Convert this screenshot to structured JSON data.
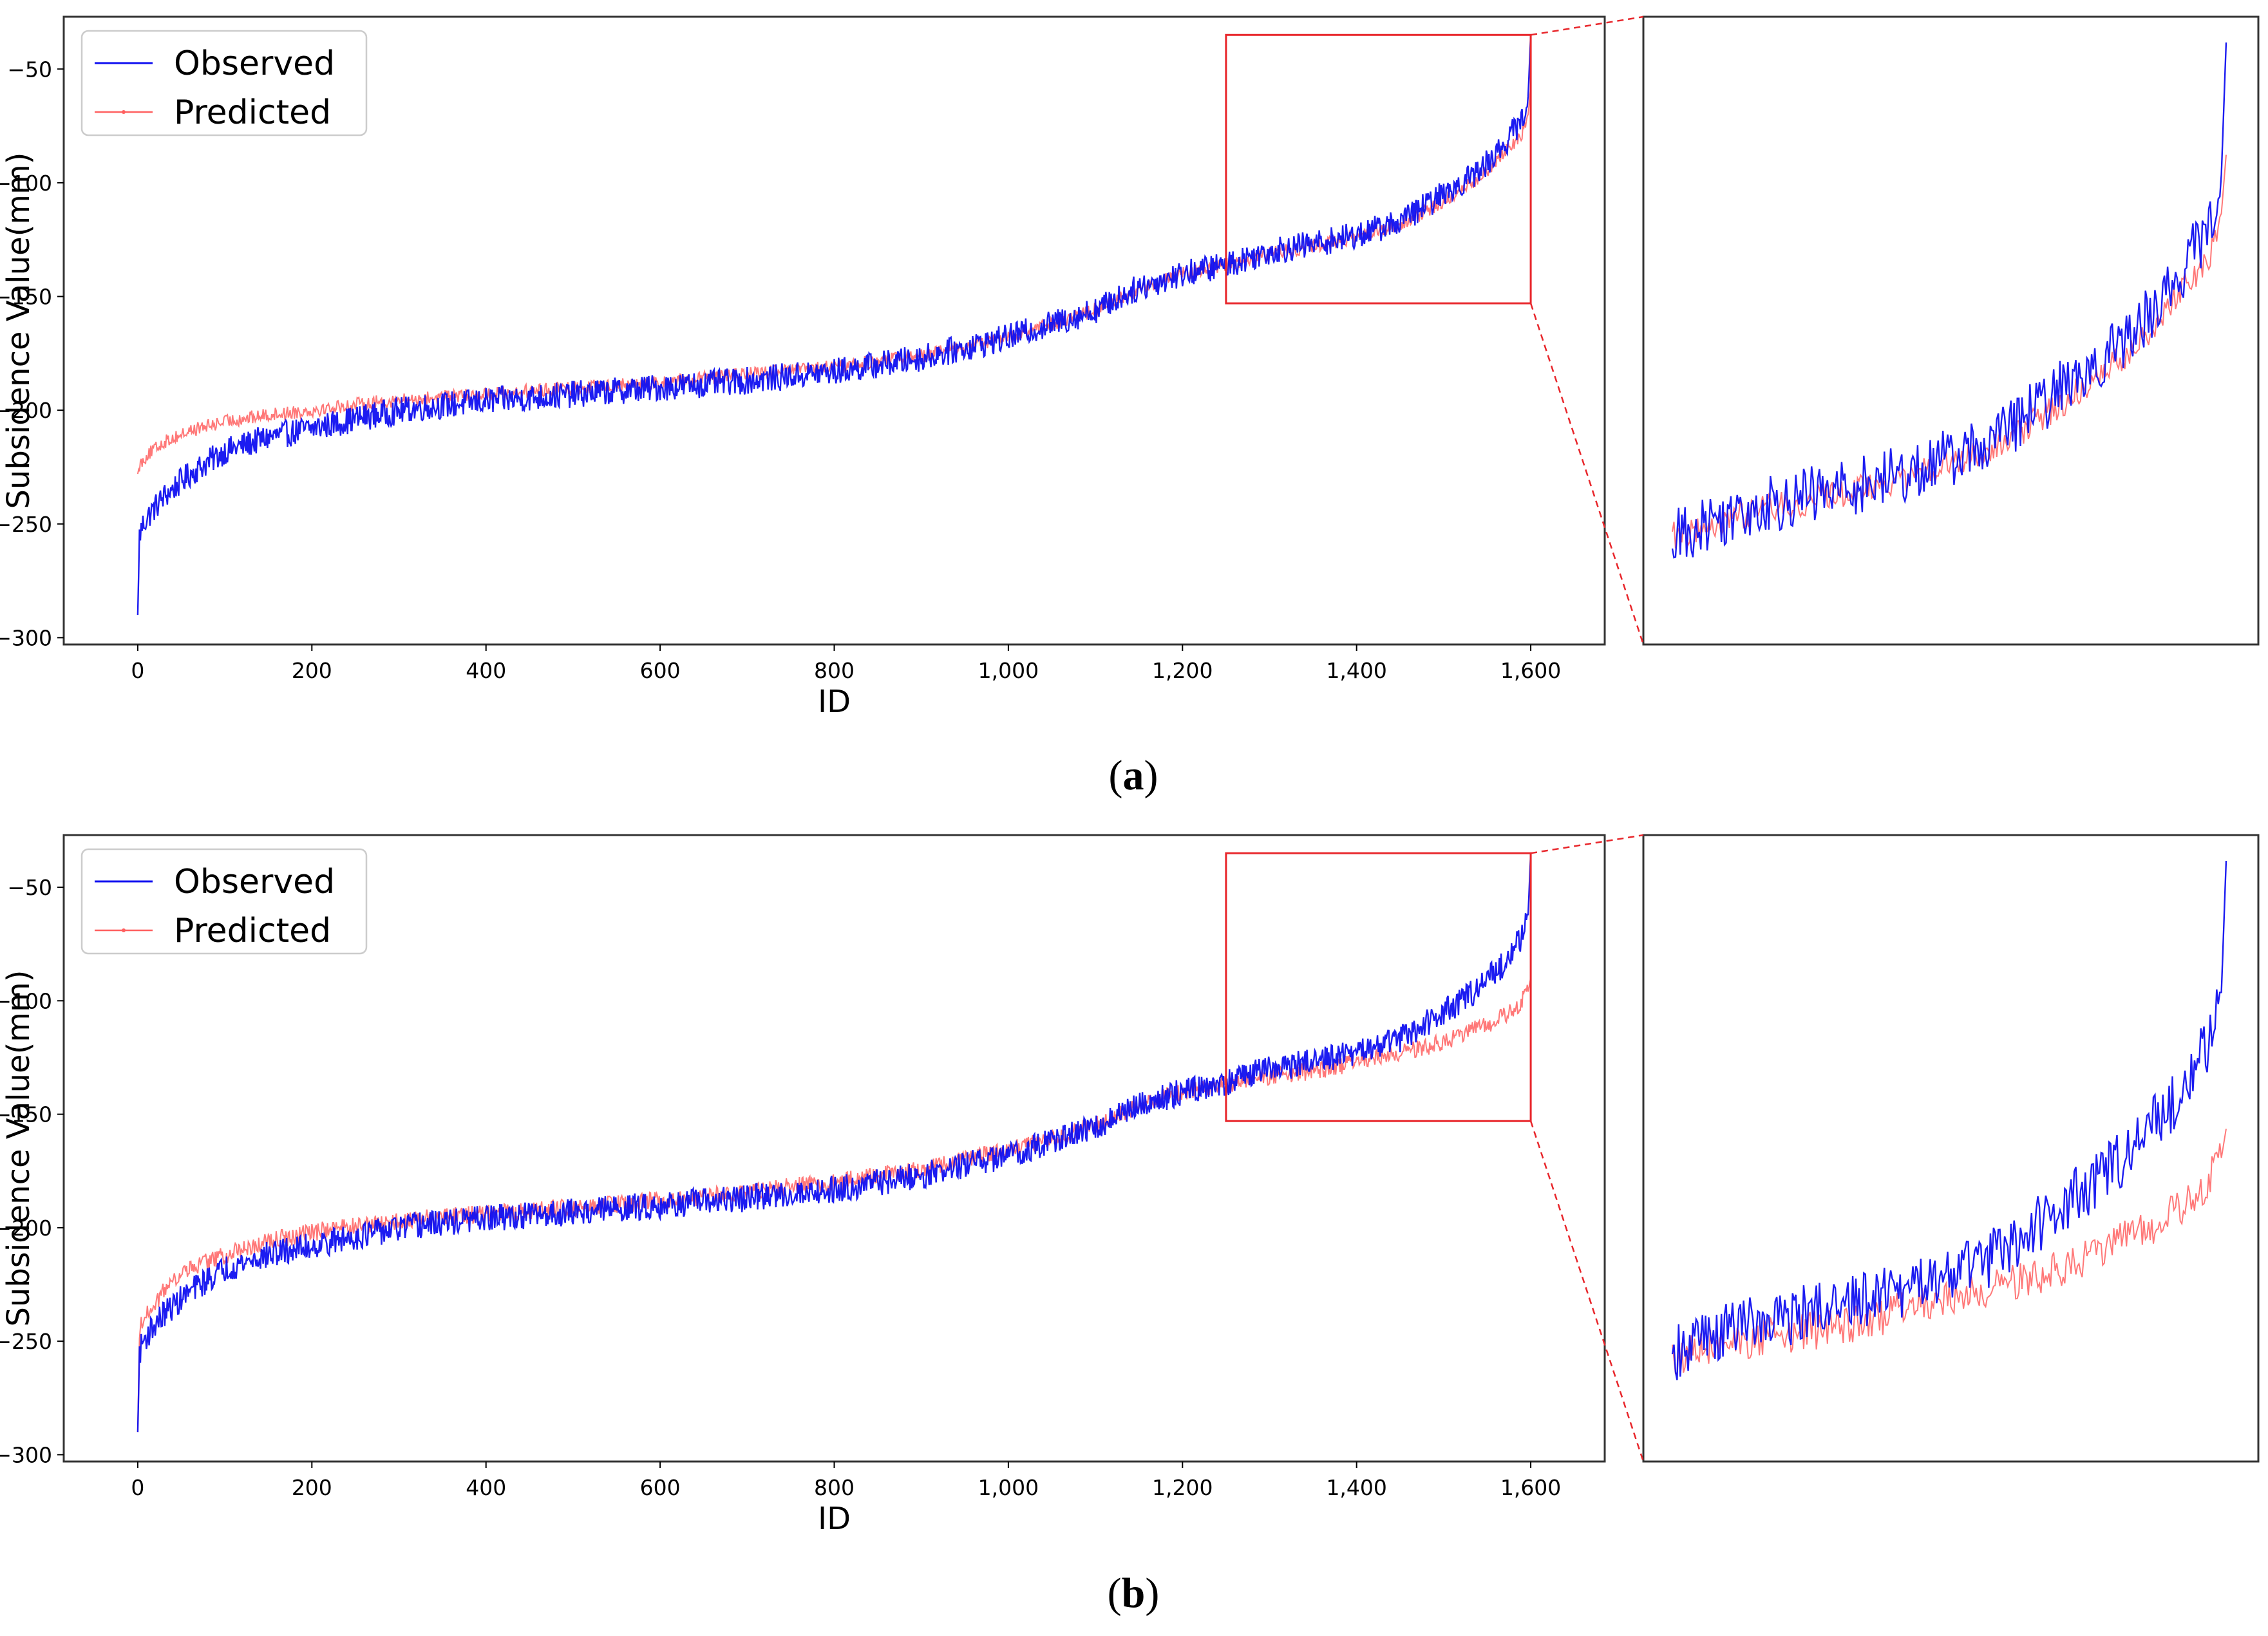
{
  "panels": [
    {
      "caption_letter": "a",
      "chart_data": {
        "type": "line",
        "xlabel": "ID",
        "ylabel": "Subsidence Value(mm)",
        "xlim": [
          -85,
          1685
        ],
        "ylim": [
          -303,
          -27
        ],
        "xticks": [
          0,
          200,
          400,
          600,
          800,
          1000,
          1200,
          1400,
          1600
        ],
        "xtick_labels": [
          "0",
          "200",
          "400",
          "600",
          "800",
          "1,000",
          "1,200",
          "1,400",
          "1,600"
        ],
        "yticks": [
          -300,
          -250,
          -200,
          -150,
          -100,
          -50
        ],
        "ytick_labels": [
          "−300",
          "−250",
          "−200",
          "−150",
          "−100",
          "−50"
        ],
        "legend": {
          "position": "top-left",
          "entries": [
            "Observed",
            "Predicted"
          ]
        },
        "zoom_window": {
          "x_range": [
            1250,
            1600
          ],
          "y_range": [
            -153,
            -35
          ]
        },
        "series": [
          {
            "name": "Observed",
            "color": "#1010f0",
            "anchor_x": [
              0,
              2,
              6,
              15,
              30,
              60,
              100,
              150,
              200,
              260,
              320,
              400,
              500,
              600,
              700,
              800,
              900,
              1000,
              1100,
              1150,
              1200,
              1250,
              1300,
              1350,
              1400,
              1450,
              1500,
              1540,
              1570,
              1590,
              1597,
              1600
            ],
            "anchor_y": [
              -290,
              -255,
              -250,
              -245,
              -238,
              -228,
              -218,
              -212,
              -208,
              -203,
              -199,
              -196,
              -193,
              -190,
              -187,
              -183,
              -177,
              -168,
              -156,
              -146,
              -140,
              -136,
              -130,
              -127,
              -123,
              -117,
              -105,
              -95,
              -83,
              -72,
              -62,
              -35
            ],
            "noise": 6
          },
          {
            "name": "Predicted",
            "color": "#ff6060",
            "anchor_x": [
              0,
              2,
              10,
              30,
              60,
              100,
              150,
              200,
              260,
              320,
              400,
              500,
              600,
              700,
              800,
              900,
              1000,
              1100,
              1150,
              1200,
              1250,
              1300,
              1350,
              1400,
              1450,
              1500,
              1540,
              1570,
              1590,
              1597,
              1600
            ],
            "anchor_y": [
              -228,
              -224,
              -220,
              -214,
              -209,
              -205,
              -202,
              -200,
              -197,
              -195,
              -193,
              -190,
              -188,
              -184,
              -181,
              -176,
              -168,
              -156,
              -147,
              -140,
              -136,
              -131,
              -128,
              -124,
              -119,
              -108,
              -98,
              -87,
              -78,
              -70,
              -58
            ],
            "noise": 3
          }
        ]
      }
    },
    {
      "caption_letter": "b",
      "chart_data": {
        "type": "line",
        "xlabel": "ID",
        "ylabel": "Subsidence Value(mm)",
        "xlim": [
          -85,
          1685
        ],
        "ylim": [
          -303,
          -27
        ],
        "xticks": [
          0,
          200,
          400,
          600,
          800,
          1000,
          1200,
          1400,
          1600
        ],
        "xtick_labels": [
          "0",
          "200",
          "400",
          "600",
          "800",
          "1,000",
          "1,200",
          "1,400",
          "1,600"
        ],
        "yticks": [
          -300,
          -250,
          -200,
          -150,
          -100,
          -50
        ],
        "ytick_labels": [
          "−300",
          "−250",
          "−200",
          "−150",
          "−100",
          "−50"
        ],
        "legend": {
          "position": "top-left",
          "entries": [
            "Observed",
            "Predicted"
          ]
        },
        "zoom_window": {
          "x_range": [
            1250,
            1600
          ],
          "y_range": [
            -153,
            -35
          ]
        },
        "series": [
          {
            "name": "Observed",
            "color": "#1010f0",
            "anchor_x": [
              0,
              2,
              6,
              15,
              30,
              60,
              100,
              150,
              200,
              260,
              320,
              400,
              500,
              600,
              700,
              800,
              900,
              1000,
              1100,
              1150,
              1200,
              1250,
              1300,
              1350,
              1400,
              1450,
              1500,
              1540,
              1570,
              1590,
              1597,
              1600
            ],
            "anchor_y": [
              -290,
              -255,
              -250,
              -245,
              -238,
              -228,
              -218,
              -212,
              -208,
              -203,
              -199,
              -196,
              -193,
              -190,
              -187,
              -183,
              -177,
              -168,
              -156,
              -146,
              -140,
              -136,
              -130,
              -127,
              -123,
              -117,
              -105,
              -95,
              -83,
              -72,
              -62,
              -35
            ],
            "noise": 6
          },
          {
            "name": "Predicted",
            "color": "#ff6060",
            "anchor_x": [
              0,
              2,
              10,
              30,
              60,
              100,
              150,
              200,
              260,
              320,
              400,
              500,
              600,
              700,
              800,
              900,
              1000,
              1100,
              1150,
              1200,
              1250,
              1300,
              1350,
              1400,
              1450,
              1500,
              1540,
              1570,
              1590,
              1597,
              1600
            ],
            "anchor_y": [
              -290,
              -245,
              -238,
              -228,
              -218,
              -212,
              -206,
              -202,
              -199,
              -196,
              -194,
              -191,
              -188,
              -184,
              -180,
              -174,
              -166,
              -155,
              -146,
              -140,
              -137,
              -133,
              -131,
              -127,
              -123,
              -118,
              -112,
              -107,
              -100,
              -96,
              -90
            ],
            "noise": 4
          }
        ]
      }
    }
  ]
}
